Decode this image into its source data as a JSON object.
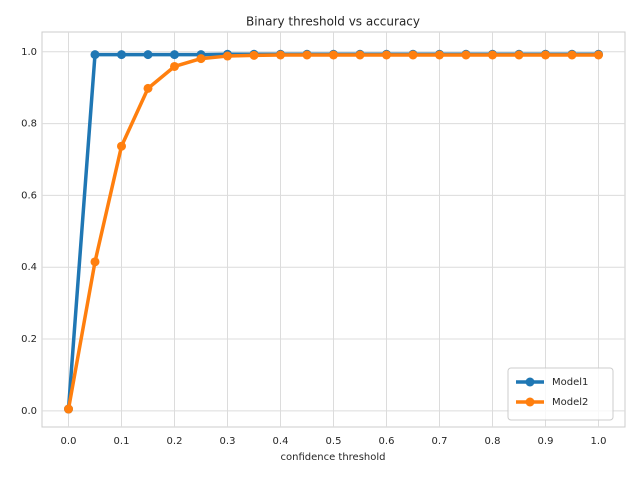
{
  "chart_data": {
    "type": "line",
    "title": "Binary threshold vs accuracy",
    "xlabel": "confidence threshold",
    "x": [
      0,
      0.05,
      0.1,
      0.15,
      0.2,
      0.25,
      0.3,
      0.35,
      0.4,
      0.45,
      0.5,
      0.55,
      0.6,
      0.65,
      0.7,
      0.75,
      0.8,
      0.85,
      0.9,
      0.95,
      1
    ],
    "series": [
      {
        "name": "Model1",
        "color": "#1f77b4",
        "values": [
          0.005,
          0.992,
          0.992,
          0.992,
          0.992,
          0.992,
          0.993,
          0.993,
          0.993,
          0.993,
          0.993,
          0.993,
          0.993,
          0.993,
          0.993,
          0.993,
          0.993,
          0.993,
          0.993,
          0.993,
          0.993
        ]
      },
      {
        "name": "Model2",
        "color": "#ff7f0e",
        "values": [
          0.005,
          0.415,
          0.737,
          0.898,
          0.959,
          0.981,
          0.988,
          0.99,
          0.991,
          0.991,
          0.991,
          0.991,
          0.991,
          0.991,
          0.991,
          0.991,
          0.991,
          0.991,
          0.991,
          0.991,
          0.991
        ]
      }
    ],
    "xlim": [
      -0.05,
      1.05
    ],
    "xticks": [
      {
        "value": 0,
        "label": "0.0"
      },
      0.1,
      0.2,
      0.3,
      0.4,
      0.5,
      0.6,
      0.7,
      0.8,
      0.9,
      {
        "value": 1,
        "label": "1.0"
      }
    ],
    "ylim": [
      -0.045,
      1.055
    ],
    "yticks": [
      {
        "value": 0,
        "label": "0.0"
      },
      0.2,
      0.4,
      0.6,
      0.8,
      {
        "value": 1,
        "label": "1.0"
      }
    ],
    "grid": true,
    "legend": "lower right"
  }
}
